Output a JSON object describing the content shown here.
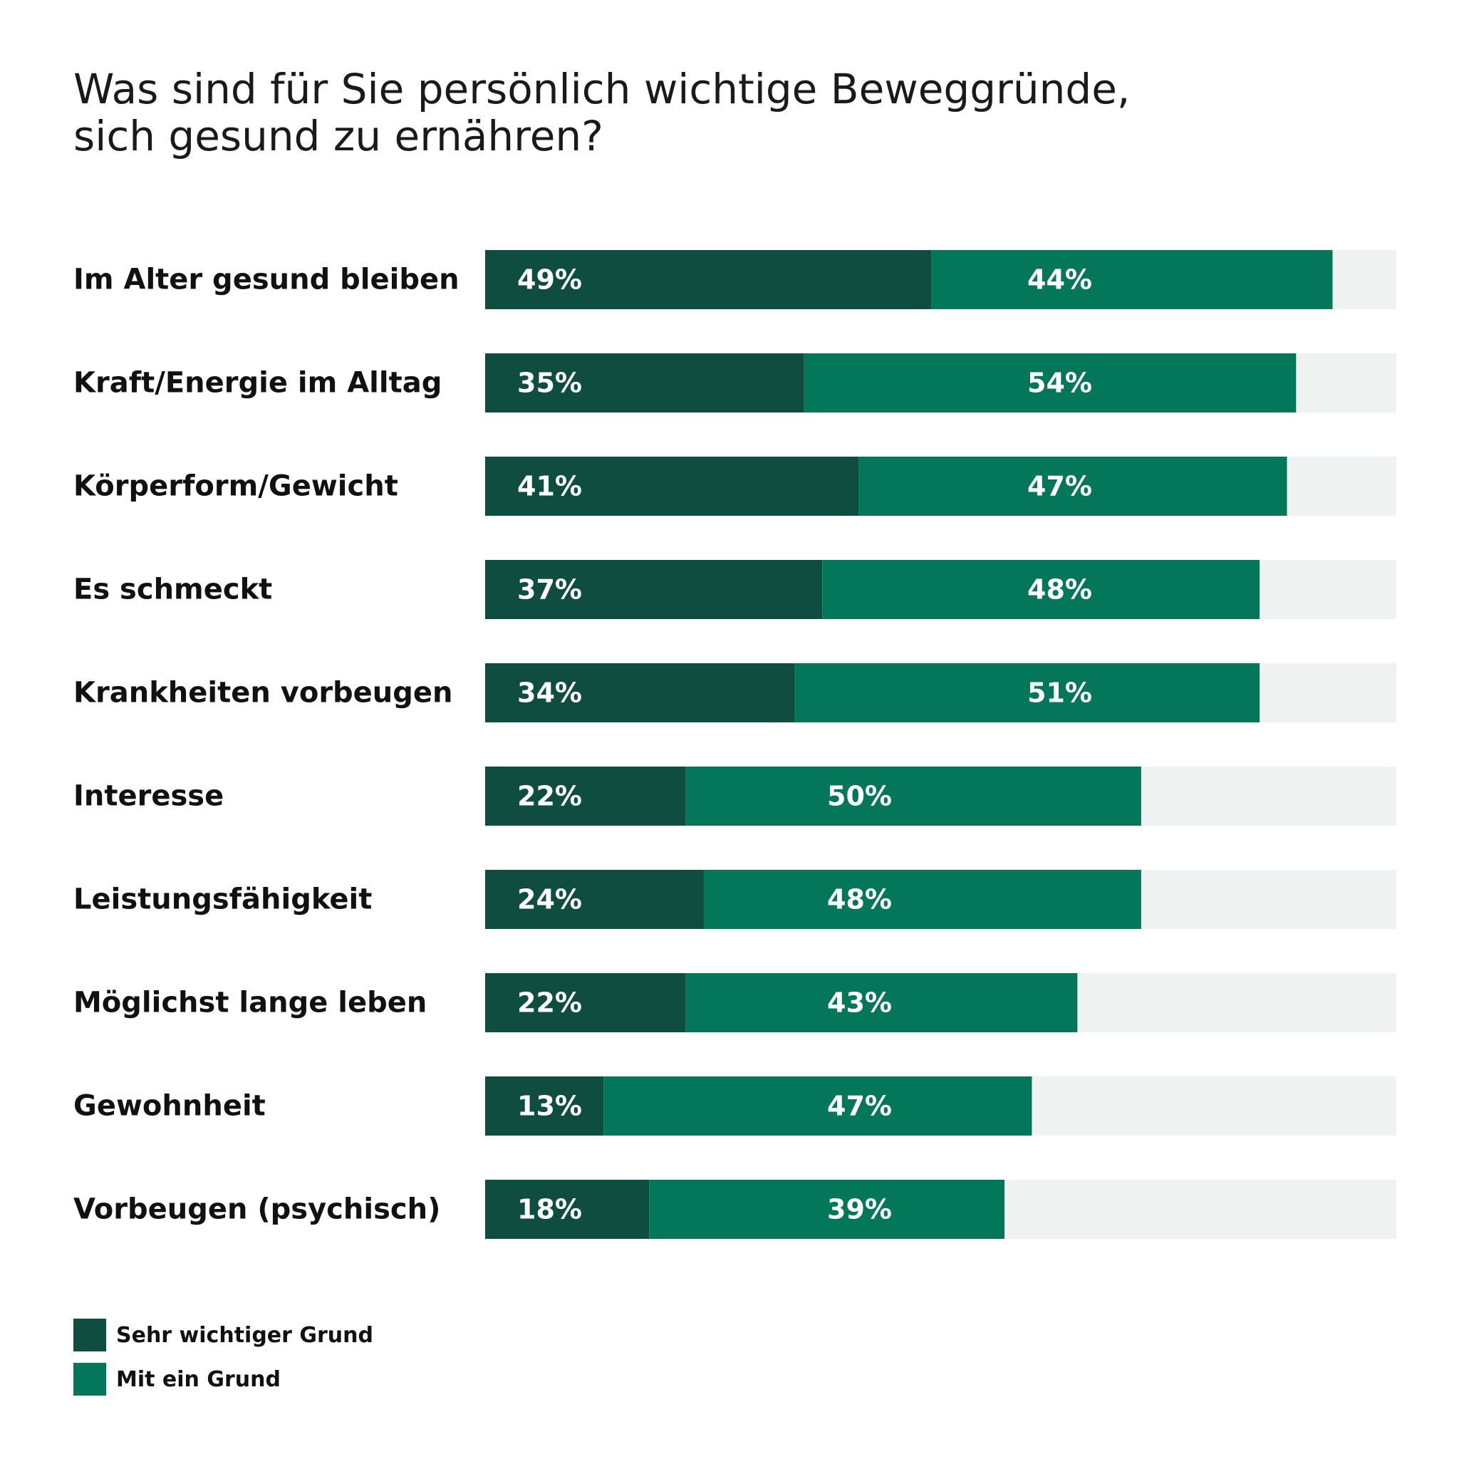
{
  "title_lines": [
    "Was sind für Sie persönlich wichtige Beweggründe,",
    "sich gesund zu ernähren?"
  ],
  "colors": {
    "sehr_wichtig": "#0e4d3f",
    "mit_ein_grund": "#04775b",
    "remainder": "#eef3f1"
  },
  "legend": [
    {
      "label": "Sehr wichtiger Grund",
      "color": "#0e4d3f"
    },
    {
      "label": "Mit ein Grund",
      "color": "#04775b"
    }
  ],
  "chart_data": {
    "type": "bar",
    "orientation": "horizontal",
    "stacked": true,
    "xlim": [
      0,
      100
    ],
    "categories": [
      "Im Alter gesund bleiben",
      "Kraft/Energie im Alltag",
      "Körperform/Gewicht",
      "Es schmeckt",
      "Krankheiten vorbeugen",
      "Interesse",
      "Leistungsfähigkeit",
      "Möglichst lange leben",
      "Gewohnheit",
      "Vorbeugen (psychisch)"
    ],
    "series": [
      {
        "name": "Sehr wichtiger Grund",
        "color": "#0e4d3f",
        "values": [
          49,
          35,
          41,
          37,
          34,
          22,
          24,
          22,
          13,
          18
        ],
        "labels": [
          "49%",
          "35%",
          "41%",
          "37%",
          "34%",
          "22%",
          "24%",
          "22%",
          "13%",
          "18%"
        ]
      },
      {
        "name": "Mit ein Grund",
        "color": "#04775b",
        "values": [
          44,
          54,
          47,
          48,
          51,
          50,
          48,
          43,
          47,
          39
        ],
        "labels": [
          "44%",
          "54%",
          "47%",
          "48%",
          "51%",
          "50%",
          "48%",
          "43%",
          "47%",
          "39%"
        ]
      }
    ],
    "legend_position": "bottom-left"
  }
}
